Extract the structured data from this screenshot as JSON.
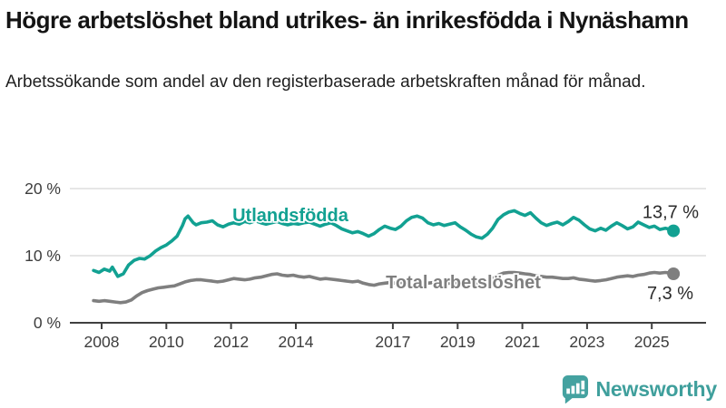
{
  "header": {
    "title": "Högre arbetslöshet bland utrikes- än inrikesfödda i Nynäshamn",
    "subtitle": "Arbetssökande som andel av den registerbaserade arbetskraften månad för månad."
  },
  "chart_data": {
    "type": "line",
    "title": "Högre arbetslöshet bland utrikes- än inrikesfödda i Nynäshamn",
    "xlabel": "",
    "ylabel": "",
    "ylim": [
      0,
      20
    ],
    "xlim": [
      2007.7,
      2026.3
    ],
    "grid": "horizontal",
    "legend_position": "inline-labels",
    "y_ticks": [
      {
        "value": 20,
        "label": "20 %"
      },
      {
        "value": 10,
        "label": "10 %"
      },
      {
        "value": 0,
        "label": "0 %"
      }
    ],
    "x_ticks": [
      {
        "value": 2008,
        "label": "2008"
      },
      {
        "value": 2010,
        "label": "2010"
      },
      {
        "value": 2012,
        "label": "2012"
      },
      {
        "value": 2014,
        "label": "2014"
      },
      {
        "value": 2017,
        "label": "2017"
      },
      {
        "value": 2019,
        "label": "2019"
      },
      {
        "value": 2021,
        "label": "2021"
      },
      {
        "value": 2023,
        "label": "2023"
      },
      {
        "value": 2025,
        "label": "2025"
      }
    ],
    "series": [
      {
        "name": "Utlandsfödda",
        "color": "#12a192",
        "end_label": "13,7 %",
        "end_value": 13.7,
        "label_pos": [
          2012.04,
          15.15
        ],
        "end_label_offset": [
          28,
          -14
        ],
        "points": [
          [
            2007.75,
            7.8
          ],
          [
            2007.92,
            7.5
          ],
          [
            2008.08,
            8.0
          ],
          [
            2008.25,
            7.7
          ],
          [
            2008.33,
            8.3
          ],
          [
            2008.5,
            6.9
          ],
          [
            2008.67,
            7.3
          ],
          [
            2008.83,
            8.6
          ],
          [
            2009.0,
            9.3
          ],
          [
            2009.17,
            9.6
          ],
          [
            2009.33,
            9.5
          ],
          [
            2009.5,
            10.0
          ],
          [
            2009.67,
            10.7
          ],
          [
            2009.83,
            11.2
          ],
          [
            2010.0,
            11.6
          ],
          [
            2010.17,
            12.2
          ],
          [
            2010.33,
            12.9
          ],
          [
            2010.5,
            14.5
          ],
          [
            2010.58,
            15.5
          ],
          [
            2010.67,
            15.9
          ],
          [
            2010.83,
            14.9
          ],
          [
            2010.92,
            14.6
          ],
          [
            2011.08,
            14.9
          ],
          [
            2011.25,
            15.0
          ],
          [
            2011.42,
            15.2
          ],
          [
            2011.58,
            14.6
          ],
          [
            2011.75,
            14.3
          ],
          [
            2011.92,
            14.7
          ],
          [
            2012.08,
            14.9
          ],
          [
            2012.25,
            14.7
          ],
          [
            2012.42,
            15.1
          ],
          [
            2012.58,
            14.9
          ],
          [
            2012.75,
            15.2
          ],
          [
            2012.92,
            14.9
          ],
          [
            2013.08,
            14.7
          ],
          [
            2013.25,
            14.9
          ],
          [
            2013.42,
            15.1
          ],
          [
            2013.58,
            14.8
          ],
          [
            2013.75,
            14.6
          ],
          [
            2013.92,
            14.8
          ],
          [
            2014.08,
            14.7
          ],
          [
            2014.25,
            14.9
          ],
          [
            2014.42,
            15.0
          ],
          [
            2014.58,
            14.7
          ],
          [
            2014.75,
            14.4
          ],
          [
            2014.92,
            14.7
          ],
          [
            2015.08,
            14.9
          ],
          [
            2015.25,
            14.5
          ],
          [
            2015.42,
            14.0
          ],
          [
            2015.58,
            13.7
          ],
          [
            2015.75,
            13.4
          ],
          [
            2015.92,
            13.6
          ],
          [
            2016.08,
            13.3
          ],
          [
            2016.25,
            12.9
          ],
          [
            2016.42,
            13.3
          ],
          [
            2016.58,
            13.9
          ],
          [
            2016.75,
            14.4
          ],
          [
            2016.92,
            14.1
          ],
          [
            2017.08,
            13.9
          ],
          [
            2017.25,
            14.4
          ],
          [
            2017.42,
            15.2
          ],
          [
            2017.58,
            15.7
          ],
          [
            2017.75,
            15.9
          ],
          [
            2017.92,
            15.6
          ],
          [
            2018.08,
            14.9
          ],
          [
            2018.25,
            14.6
          ],
          [
            2018.42,
            14.8
          ],
          [
            2018.58,
            14.5
          ],
          [
            2018.75,
            14.7
          ],
          [
            2018.92,
            14.9
          ],
          [
            2019.08,
            14.3
          ],
          [
            2019.25,
            13.8
          ],
          [
            2019.42,
            13.2
          ],
          [
            2019.58,
            12.8
          ],
          [
            2019.75,
            12.6
          ],
          [
            2019.92,
            13.2
          ],
          [
            2020.08,
            14.1
          ],
          [
            2020.25,
            15.4
          ],
          [
            2020.42,
            16.1
          ],
          [
            2020.58,
            16.5
          ],
          [
            2020.75,
            16.7
          ],
          [
            2020.92,
            16.3
          ],
          [
            2021.08,
            16.0
          ],
          [
            2021.25,
            16.4
          ],
          [
            2021.42,
            15.6
          ],
          [
            2021.58,
            14.9
          ],
          [
            2021.75,
            14.5
          ],
          [
            2021.92,
            14.8
          ],
          [
            2022.08,
            15.0
          ],
          [
            2022.25,
            14.6
          ],
          [
            2022.42,
            15.1
          ],
          [
            2022.58,
            15.7
          ],
          [
            2022.75,
            15.3
          ],
          [
            2022.92,
            14.6
          ],
          [
            2023.08,
            14.0
          ],
          [
            2023.25,
            13.7
          ],
          [
            2023.42,
            14.1
          ],
          [
            2023.58,
            13.8
          ],
          [
            2023.75,
            14.4
          ],
          [
            2023.92,
            14.9
          ],
          [
            2024.08,
            14.5
          ],
          [
            2024.25,
            14.0
          ],
          [
            2024.42,
            14.3
          ],
          [
            2024.58,
            15.0
          ],
          [
            2024.75,
            14.6
          ],
          [
            2024.92,
            14.2
          ],
          [
            2025.08,
            14.4
          ],
          [
            2025.25,
            13.9
          ],
          [
            2025.42,
            14.1
          ],
          [
            2025.58,
            13.9
          ],
          [
            2025.67,
            13.7
          ]
        ]
      },
      {
        "name": "Total arbetslöshet",
        "color": "#7f7f7f",
        "end_label": "7,3 %",
        "end_value": 7.3,
        "label_pos": [
          2016.78,
          5.15
        ],
        "end_label_offset": [
          22,
          28
        ],
        "points": [
          [
            2007.75,
            3.3
          ],
          [
            2007.92,
            3.2
          ],
          [
            2008.08,
            3.3
          ],
          [
            2008.25,
            3.2
          ],
          [
            2008.42,
            3.1
          ],
          [
            2008.58,
            3.0
          ],
          [
            2008.75,
            3.1
          ],
          [
            2008.92,
            3.4
          ],
          [
            2009.08,
            4.0
          ],
          [
            2009.25,
            4.5
          ],
          [
            2009.42,
            4.8
          ],
          [
            2009.58,
            5.0
          ],
          [
            2009.75,
            5.2
          ],
          [
            2009.92,
            5.3
          ],
          [
            2010.08,
            5.4
          ],
          [
            2010.25,
            5.5
          ],
          [
            2010.42,
            5.8
          ],
          [
            2010.58,
            6.1
          ],
          [
            2010.75,
            6.3
          ],
          [
            2010.92,
            6.4
          ],
          [
            2011.08,
            6.4
          ],
          [
            2011.25,
            6.3
          ],
          [
            2011.42,
            6.2
          ],
          [
            2011.58,
            6.1
          ],
          [
            2011.75,
            6.2
          ],
          [
            2011.92,
            6.4
          ],
          [
            2012.08,
            6.6
          ],
          [
            2012.25,
            6.5
          ],
          [
            2012.42,
            6.4
          ],
          [
            2012.58,
            6.5
          ],
          [
            2012.75,
            6.7
          ],
          [
            2012.92,
            6.8
          ],
          [
            2013.08,
            7.0
          ],
          [
            2013.25,
            7.2
          ],
          [
            2013.42,
            7.3
          ],
          [
            2013.58,
            7.1
          ],
          [
            2013.75,
            7.0
          ],
          [
            2013.92,
            7.1
          ],
          [
            2014.08,
            6.9
          ],
          [
            2014.25,
            6.8
          ],
          [
            2014.42,
            6.9
          ],
          [
            2014.58,
            6.7
          ],
          [
            2014.75,
            6.5
          ],
          [
            2014.92,
            6.6
          ],
          [
            2015.08,
            6.5
          ],
          [
            2015.25,
            6.4
          ],
          [
            2015.42,
            6.3
          ],
          [
            2015.58,
            6.2
          ],
          [
            2015.75,
            6.1
          ],
          [
            2015.92,
            6.2
          ],
          [
            2016.08,
            5.9
          ],
          [
            2016.25,
            5.7
          ],
          [
            2016.42,
            5.6
          ],
          [
            2016.58,
            5.8
          ],
          [
            2016.75,
            5.9
          ],
          [
            2016.92,
            6.0
          ],
          [
            2017.08,
            5.9
          ],
          [
            2017.25,
            6.0
          ],
          [
            2017.42,
            6.1
          ],
          [
            2017.58,
            6.2
          ],
          [
            2017.75,
            6.1
          ],
          [
            2017.92,
            6.0
          ],
          [
            2018.08,
            5.9
          ],
          [
            2018.25,
            6.0
          ],
          [
            2018.42,
            5.9
          ],
          [
            2018.58,
            5.8
          ],
          [
            2018.75,
            5.9
          ],
          [
            2018.92,
            6.0
          ],
          [
            2019.08,
            5.9
          ],
          [
            2019.25,
            5.8
          ],
          [
            2019.42,
            5.7
          ],
          [
            2019.58,
            5.8
          ],
          [
            2019.75,
            5.9
          ],
          [
            2019.92,
            6.2
          ],
          [
            2020.08,
            6.6
          ],
          [
            2020.25,
            7.1
          ],
          [
            2020.42,
            7.4
          ],
          [
            2020.58,
            7.5
          ],
          [
            2020.75,
            7.5
          ],
          [
            2020.92,
            7.4
          ],
          [
            2021.08,
            7.3
          ],
          [
            2021.25,
            7.2
          ],
          [
            2021.42,
            7.0
          ],
          [
            2021.58,
            6.9
          ],
          [
            2021.75,
            6.8
          ],
          [
            2021.92,
            6.8
          ],
          [
            2022.08,
            6.7
          ],
          [
            2022.25,
            6.6
          ],
          [
            2022.42,
            6.6
          ],
          [
            2022.58,
            6.7
          ],
          [
            2022.75,
            6.5
          ],
          [
            2022.92,
            6.4
          ],
          [
            2023.08,
            6.3
          ],
          [
            2023.25,
            6.2
          ],
          [
            2023.42,
            6.3
          ],
          [
            2023.58,
            6.4
          ],
          [
            2023.75,
            6.6
          ],
          [
            2023.92,
            6.8
          ],
          [
            2024.08,
            6.9
          ],
          [
            2024.25,
            7.0
          ],
          [
            2024.42,
            6.9
          ],
          [
            2024.58,
            7.1
          ],
          [
            2024.75,
            7.2
          ],
          [
            2024.92,
            7.4
          ],
          [
            2025.08,
            7.5
          ],
          [
            2025.25,
            7.4
          ],
          [
            2025.42,
            7.5
          ],
          [
            2025.58,
            7.4
          ],
          [
            2025.67,
            7.3
          ]
        ]
      }
    ],
    "colors": {
      "grid": "#d8d8d8",
      "axis": "#404040",
      "tick_label": "#3d3d3d",
      "end_label": "#2b2b2b"
    }
  },
  "footer": {
    "brand": "Newsworthy",
    "brand_color": "#3f9f9c",
    "logo_icon": "bar-chart-speech-bubble"
  }
}
